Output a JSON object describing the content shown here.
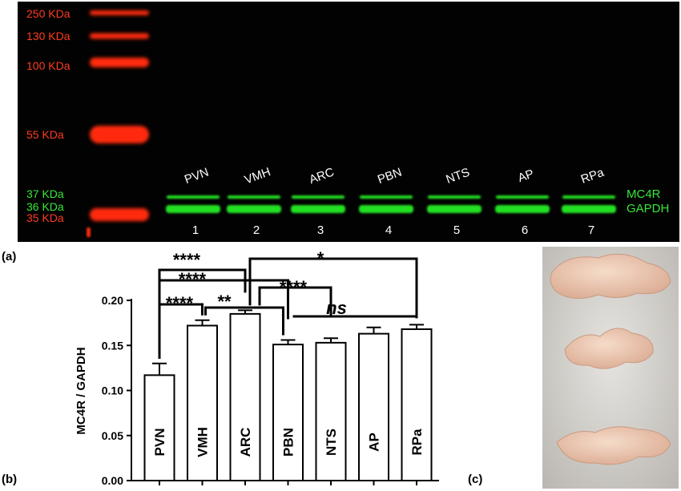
{
  "panels": {
    "a": "(a)",
    "b": "(b)",
    "c": "(c)"
  },
  "blot": {
    "ladder": [
      {
        "label": "250 KDa",
        "color": "#ff3b1f"
      },
      {
        "label": "130 KDa",
        "color": "#ff3b1f"
      },
      {
        "label": "100 KDa",
        "color": "#ff3b1f"
      },
      {
        "label": "55 KDa",
        "color": "#ff3b1f"
      },
      {
        "label": "37 KDa",
        "color": "#39e639"
      },
      {
        "label": "36 KDa",
        "color": "#39e639"
      },
      {
        "label": "35 KDa",
        "color": "#ff3b1f"
      }
    ],
    "lanes": [
      {
        "name": "PVN",
        "number": "1"
      },
      {
        "name": "VMH",
        "number": "2"
      },
      {
        "name": "ARC",
        "number": "3"
      },
      {
        "name": "PBN",
        "number": "4"
      },
      {
        "name": "NTS",
        "number": "5"
      },
      {
        "name": "AP",
        "number": "6"
      },
      {
        "name": "RPa",
        "number": "7"
      }
    ],
    "band_labels": {
      "upper": "MC4R",
      "lower": "GAPDH"
    },
    "colors": {
      "background": "#020202",
      "ladder": "#ff2a10",
      "band": "#22e022",
      "text": "#ffffff"
    }
  },
  "chart_data": {
    "type": "bar",
    "categories": [
      "PVN",
      "VMH",
      "ARC",
      "PBN",
      "NTS",
      "AP",
      "RPa"
    ],
    "values": [
      0.117,
      0.172,
      0.185,
      0.151,
      0.153,
      0.163,
      0.168
    ],
    "errors": [
      0.013,
      0.006,
      0.004,
      0.005,
      0.005,
      0.007,
      0.005
    ],
    "ylabel": "MC4R / GAPDH",
    "ylim": [
      0,
      0.2
    ],
    "yticks": [
      "0.00",
      "0.05",
      "0.10",
      "0.15",
      "0.20"
    ],
    "significance": [
      {
        "from": "PVN",
        "to": "ARC",
        "label": "****"
      },
      {
        "from": "PVN",
        "to": "PBN",
        "label": "****"
      },
      {
        "from": "PVN",
        "to": "VMH",
        "label": "****"
      },
      {
        "from": "VMH",
        "to": "PBN",
        "label": "**"
      },
      {
        "from": "ARC",
        "to": "NTS",
        "label": "****"
      },
      {
        "from": "ARC",
        "to": "RPa",
        "label": "*"
      },
      {
        "from": "PBN",
        "to": "RPa",
        "label": "ns"
      }
    ],
    "bar_color": "#ffffff",
    "grid": false
  },
  "photo": {
    "background": "#d8d6d2",
    "tissue": "#ecc9b2"
  }
}
